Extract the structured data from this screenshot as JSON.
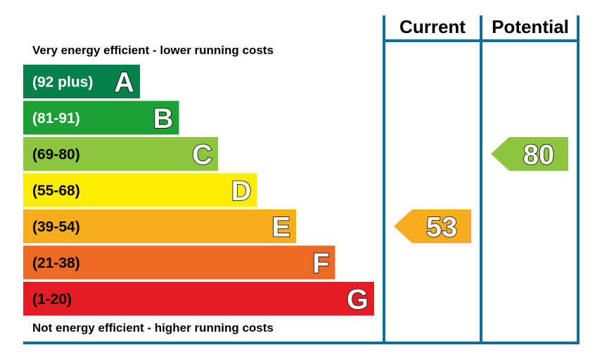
{
  "chart_data": {
    "type": "bar",
    "title": "",
    "top_caption": "Very energy efficient - lower running costs",
    "bottom_caption": "Not energy efficient - higher running costs",
    "columns": [
      "Current",
      "Potential"
    ],
    "bands": [
      {
        "letter": "A",
        "range": "(92 plus)",
        "min": 92,
        "max": 100,
        "color": "#00804a",
        "text_color": "#ffffff"
      },
      {
        "letter": "B",
        "range": "(81-91)",
        "min": 81,
        "max": 91,
        "color": "#1aa035",
        "text_color": "#ffffff"
      },
      {
        "letter": "C",
        "range": "(69-80)",
        "min": 69,
        "max": 80,
        "color": "#8cc63f",
        "text_color": "#000000"
      },
      {
        "letter": "D",
        "range": "(55-68)",
        "min": 55,
        "max": 68,
        "color": "#ffed00",
        "text_color": "#000000"
      },
      {
        "letter": "E",
        "range": "(39-54)",
        "min": 39,
        "max": 54,
        "color": "#f7ad1d",
        "text_color": "#000000"
      },
      {
        "letter": "F",
        "range": "(21-38)",
        "min": 21,
        "max": 38,
        "color": "#ec6a24",
        "text_color": "#000000"
      },
      {
        "letter": "G",
        "range": "(1-20)",
        "min": 1,
        "max": 20,
        "color": "#e31d23",
        "text_color": "#000000"
      }
    ],
    "ratings": [
      {
        "column": "Current",
        "value": 53,
        "label": "53",
        "band": "E",
        "color": "#f7ad1d"
      },
      {
        "column": "Potential",
        "value": 80,
        "label": "80",
        "band": "C",
        "color": "#8cc63f"
      }
    ],
    "frame_color": "#0f6f97"
  }
}
